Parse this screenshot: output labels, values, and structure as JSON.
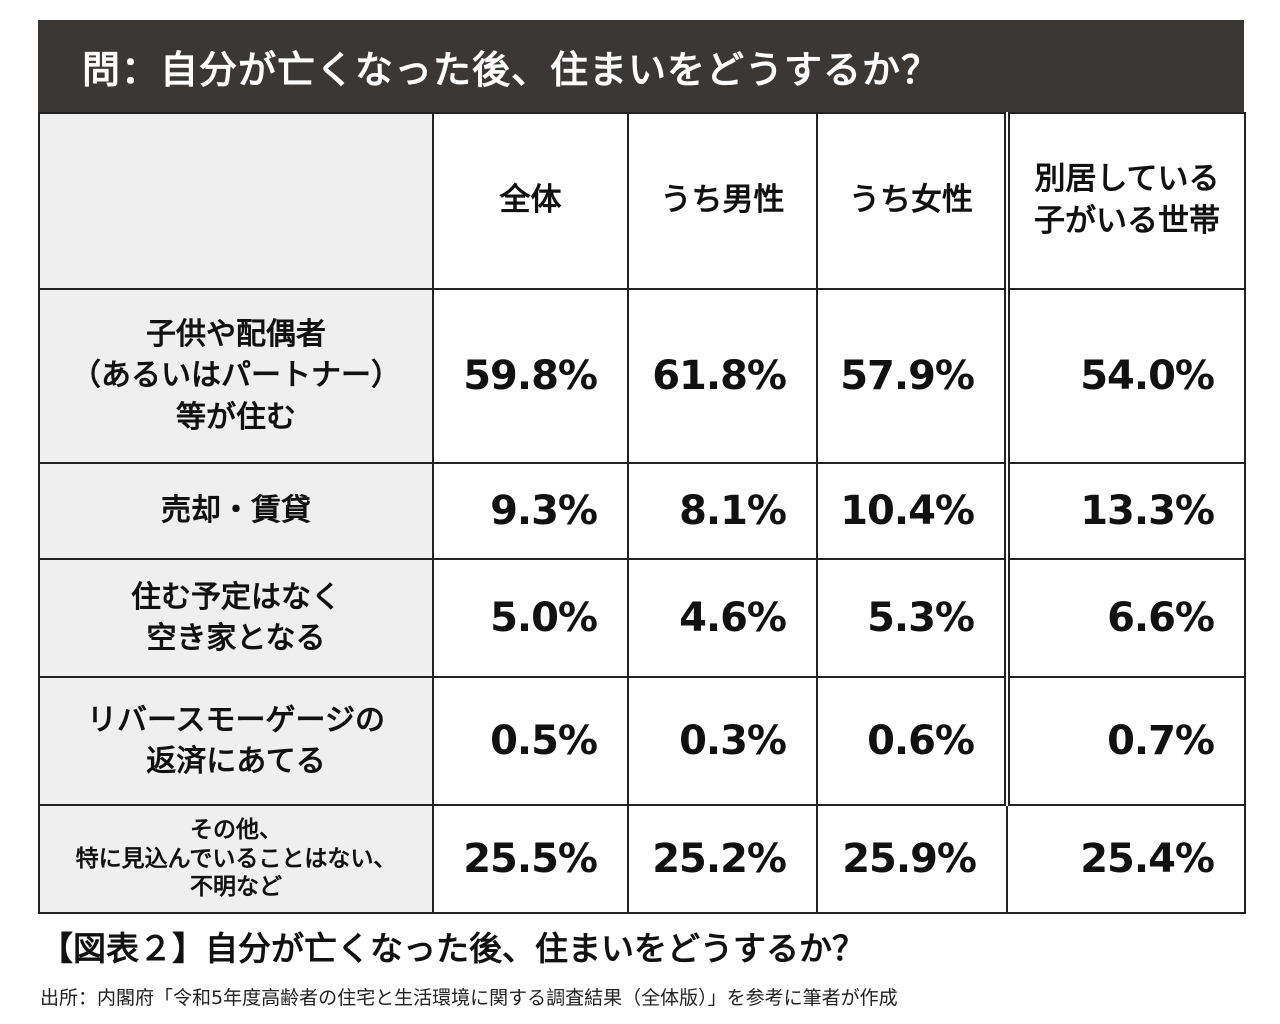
{
  "title": "問：自分が亡くなった後、住まいをどうするか？",
  "caption": "【図表２】自分が亡くなった後、住まいをどうするか？",
  "source": "出所：内閣府「令和5年度高齢者の住宅と生活環境に関する調査結果（全体版）」を参考に筆者が作成",
  "chart_data": {
    "type": "table",
    "title": "問：自分が亡くなった後、住まいをどうするか？",
    "columns": [
      "全体",
      "うち男性",
      "うち女性",
      "別居している\n子がいる世帯"
    ],
    "rows": [
      {
        "label": "子供や配偶者\n（あるいはパートナー）\n等が住む",
        "values": [
          "59.8%",
          "61.8%",
          "57.9%",
          "54.0%"
        ]
      },
      {
        "label": "売却・賃貸",
        "values": [
          "9.3%",
          "8.1%",
          "10.4%",
          "13.3%"
        ]
      },
      {
        "label": "住む予定はなく\n空き家となる",
        "values": [
          "5.0%",
          "4.6%",
          "5.3%",
          "6.6%"
        ]
      },
      {
        "label": "リバースモーゲージの\n返済にあてる",
        "values": [
          "0.5%",
          "0.3%",
          "0.6%",
          "0.7%"
        ]
      },
      {
        "label": "その他、\n特に見込んでいることはない、\n不明など",
        "values": [
          "25.5%",
          "25.2%",
          "25.9%",
          "25.4%"
        ]
      }
    ]
  },
  "colors": {
    "title_bar": "#3b3735",
    "title_text": "#ffffff",
    "label_cell": "#f0efef",
    "border": "#222222"
  }
}
